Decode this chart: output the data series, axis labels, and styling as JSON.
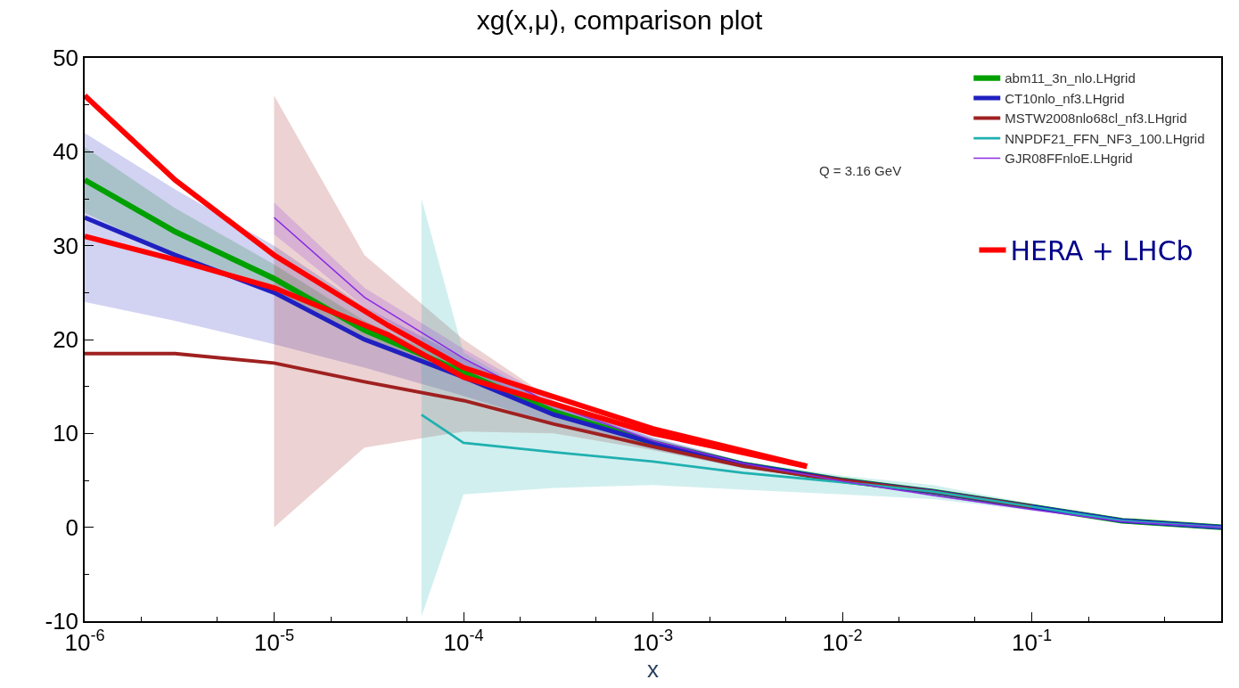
{
  "chart_data": {
    "type": "line",
    "title": "xg(x,μ), comparison plot",
    "xlabel": "x",
    "log": "x",
    "x": [
      1e-06,
      3e-06,
      1e-05,
      3e-05,
      0.0001,
      0.0003,
      0.001,
      0.003,
      0.01,
      0.03,
      0.1,
      0.3,
      1
    ],
    "series": [
      {
        "name": "abm11_3n_nlo.LHgrid",
        "color": "#00a000",
        "values": [
          37,
          31.5,
          26.5,
          21,
          16.5,
          12.3,
          9,
          6.7,
          5,
          3.8,
          2.2,
          0.7,
          0
        ],
        "lower": [
          33.5,
          29,
          25,
          20,
          15.9,
          11.9,
          8.8,
          6.6,
          4.9,
          3.7,
          2.1,
          0.7,
          0
        ],
        "upper": [
          40.5,
          34,
          28,
          22,
          17.1,
          12.7,
          9.2,
          6.8,
          5.1,
          3.9,
          2.3,
          0.7,
          0
        ]
      },
      {
        "name": "CT10nlo_nf3.LHgrid",
        "color": "#2020c0",
        "values": [
          33,
          29,
          25,
          20,
          16,
          12,
          9,
          6.7,
          5,
          3.8,
          2.2,
          0.7,
          0
        ],
        "lower": [
          24,
          22,
          19.5,
          17,
          14,
          11,
          8.3,
          6.3,
          4.7,
          3.6,
          2.1,
          0.6,
          0
        ],
        "upper": [
          42,
          36,
          30,
          23.5,
          18,
          13,
          9.6,
          7,
          5.3,
          4,
          2.3,
          0.8,
          0
        ]
      },
      {
        "name": "MSTW2008nlo68cl_nf3.LHgrid",
        "color": "#a02020",
        "values": [
          18.5,
          18.5,
          17.5,
          15.5,
          13.5,
          11,
          8.6,
          6.5,
          5,
          3.8,
          2.2,
          null,
          null
        ],
        "lower": [
          null,
          null,
          0,
          8.5,
          10.2,
          10,
          8.2,
          6.3,
          4.8,
          3.7,
          2.1,
          0.6,
          0
        ],
        "upper": [
          null,
          null,
          46,
          29,
          20,
          13.5,
          9.2,
          6.8,
          5.2,
          3.9,
          2.3,
          0.8,
          0
        ]
      },
      {
        "name": "NNPDF21_FFN_NF3_100.LHgrid",
        "color": "#20b0b0",
        "x": [
          6e-05,
          0.0001,
          0.0003,
          0.001,
          0.003,
          0.01,
          0.03,
          0.1,
          0.3,
          1
        ],
        "values": [
          12,
          9,
          8,
          7,
          5.8,
          4.8,
          3.8,
          2.2,
          0.7,
          0
        ],
        "lower": [
          -9.5,
          3.5,
          4.2,
          4.5,
          4,
          3.5,
          3,
          1.8,
          0.5,
          0
        ],
        "upper": [
          35,
          18.6,
          13,
          9.5,
          7,
          5.5,
          4.5,
          2.5,
          0.8,
          0
        ]
      },
      {
        "name": "GJR08FFnloE.LHgrid",
        "color": "#8a2be2",
        "x": [
          1e-05,
          3e-05,
          0.0001,
          0.0003,
          0.001,
          0.003,
          0.01,
          0.03,
          0.1,
          0.3,
          1
        ],
        "values": [
          33,
          24.5,
          18,
          13,
          9.2,
          6.8,
          4.9,
          3.4,
          1.9,
          0.6,
          0
        ],
        "lower": [
          31.2,
          23.5,
          17,
          12.5,
          9,
          6.7,
          4.8,
          3.3,
          1.9,
          0.6,
          0
        ],
        "upper": [
          34.6,
          25.5,
          19,
          13.5,
          9.5,
          7,
          5,
          3.5,
          2,
          0.6,
          0
        ]
      },
      {
        "name": "HERA + LHCb",
        "color": "#ff0000",
        "x": [
          1e-06,
          3e-06,
          1e-05,
          4e-05,
          0.0001,
          0.001,
          0.0065
        ],
        "values": [
          46,
          37,
          29,
          21.5,
          17,
          10.5,
          6.5
        ]
      },
      {
        "color": "#ff0000",
        "x": [
          1e-06,
          3e-06,
          1e-05,
          4e-05,
          0.0001,
          0.001,
          0.0065
        ],
        "values": [
          31,
          28.5,
          25.5,
          20.5,
          16,
          10,
          6.5
        ]
      }
    ],
    "annotations": [
      "Q = 3.16 GeV"
    ],
    "xlim": [
      1e-06,
      1
    ],
    "ylim": [
      -10,
      50
    ],
    "xticks": [
      {
        "value": 1e-06,
        "label": "10$^{-6}$"
      },
      {
        "value": 1e-05,
        "label": "10$^{-5}$"
      },
      {
        "value": 0.0001,
        "label": "10$^{-4}$"
      },
      {
        "value": 0.001,
        "label": "10$^{-3}$"
      },
      {
        "value": 0.01,
        "label": "10$^{-2}$"
      },
      {
        "value": 0.1,
        "label": "10$^{-1}$"
      },
      {
        "value": 1,
        "label": null
      }
    ],
    "yticks": [
      -10,
      0,
      10,
      20,
      30,
      40,
      50
    ],
    "legend": "top right",
    "marker": "none",
    "line_style": "solid"
  }
}
